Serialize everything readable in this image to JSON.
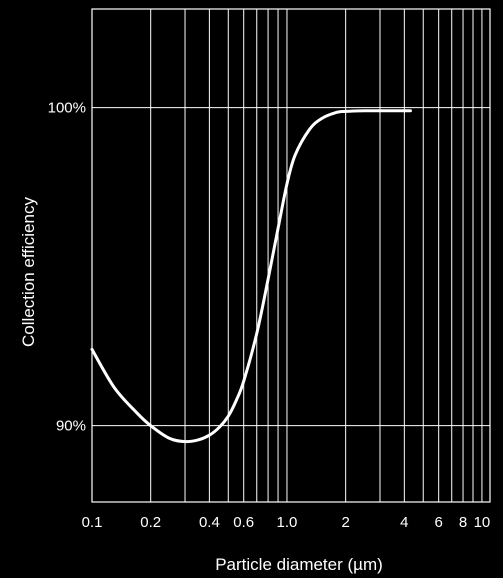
{
  "colors": {
    "background": "#000000",
    "foreground": "#ffffff"
  },
  "chart_data": {
    "type": "line",
    "title": "",
    "xlabel": "Particle diameter (µm)",
    "ylabel": "Collection efficiency",
    "x_scale": "log",
    "xlim": [
      0.1,
      11
    ],
    "ylim": [
      87.6,
      103.1
    ],
    "grid": true,
    "x_ticks": [
      0.1,
      0.2,
      0.3,
      0.4,
      0.5,
      0.6,
      0.7,
      0.8,
      0.9,
      1.0,
      2,
      3,
      4,
      5,
      6,
      7,
      8,
      9,
      10
    ],
    "x_tick_labels": [
      {
        "value": 0.1,
        "label": "0.1"
      },
      {
        "value": 0.2,
        "label": "0.2"
      },
      {
        "value": 0.4,
        "label": "0.4"
      },
      {
        "value": 0.6,
        "label": "0.6"
      },
      {
        "value": 1.0,
        "label": "1.0"
      },
      {
        "value": 2,
        "label": "2"
      },
      {
        "value": 4,
        "label": "4"
      },
      {
        "value": 6,
        "label": "6"
      },
      {
        "value": 8,
        "label": "8"
      },
      {
        "value": 10,
        "label": "10"
      }
    ],
    "y_ticks": [
      {
        "value": 90,
        "label": "90%"
      },
      {
        "value": 100,
        "label": "100%"
      }
    ],
    "series": [
      {
        "x": [
          0.1,
          0.13,
          0.17,
          0.2,
          0.25,
          0.3,
          0.35,
          0.4,
          0.45,
          0.5,
          0.55,
          0.6,
          0.7,
          0.8,
          0.9,
          1.0,
          1.1,
          1.3,
          1.5,
          1.8,
          2.0,
          2.5,
          3.0,
          3.5,
          4.0,
          4.3
        ],
        "y": [
          92.4,
          91.2,
          90.4,
          90.0,
          89.6,
          89.5,
          89.55,
          89.7,
          89.95,
          90.3,
          90.8,
          91.4,
          92.9,
          94.6,
          96.2,
          97.6,
          98.5,
          99.3,
          99.65,
          99.85,
          99.88,
          99.9,
          99.9,
          99.9,
          99.9,
          99.9
        ]
      }
    ]
  }
}
